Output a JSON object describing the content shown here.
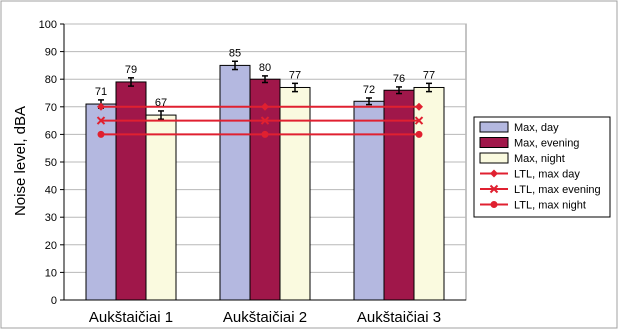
{
  "chart_data": {
    "type": "bar",
    "title": "",
    "xlabel": "",
    "ylabel": "Noise level, dBA",
    "ylim": [
      0,
      100
    ],
    "yticks": [
      0,
      10,
      20,
      30,
      40,
      50,
      60,
      70,
      80,
      90,
      100
    ],
    "grid": true,
    "legend_position": "right",
    "categories": [
      "Aukštaičiai 1",
      "Aukštaičiai 2",
      "Aukštaičiai 3"
    ],
    "series": [
      {
        "name": "Max, day",
        "values": [
          71,
          85,
          72
        ],
        "errors": [
          1.5,
          1.5,
          1.2
        ],
        "labels": [
          "71",
          "85",
          "72"
        ],
        "color": "#b4b8e0"
      },
      {
        "name": "Max, evening",
        "values": [
          79,
          80,
          76
        ],
        "errors": [
          1.5,
          1.2,
          1.2
        ],
        "labels": [
          "79",
          "80",
          "76"
        ],
        "color": "#a0174a"
      },
      {
        "name": "Max, night",
        "values": [
          67,
          77,
          77
        ],
        "errors": [
          1.5,
          1.5,
          1.5
        ],
        "labels": [
          "67",
          "77",
          "77"
        ],
        "color": "#fafadf"
      }
    ],
    "reference_lines": [
      {
        "name": "LTL, max day",
        "value": 70,
        "color": "#e02030",
        "marker": "diamond"
      },
      {
        "name": "LTL, max evening",
        "value": 65,
        "color": "#e02030",
        "marker": "x"
      },
      {
        "name": "LTL, max night",
        "value": 60,
        "color": "#e02030",
        "marker": "circle"
      }
    ]
  }
}
